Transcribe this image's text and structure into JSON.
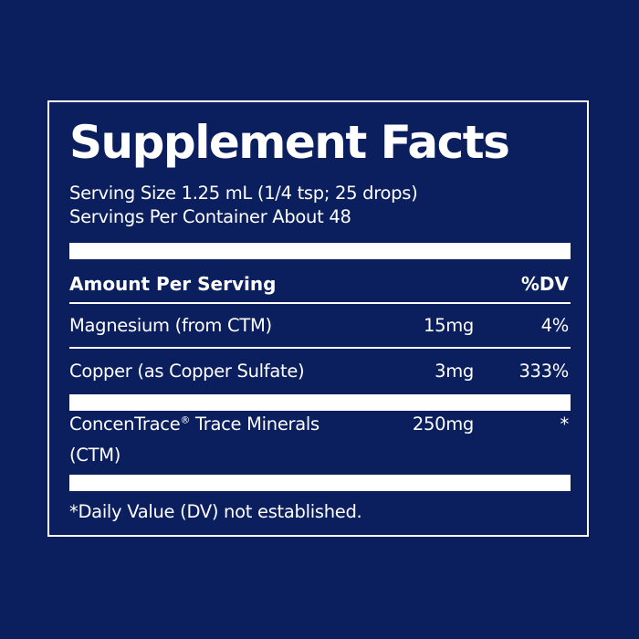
{
  "title": "Supplement Facts",
  "serving_size": "Serving Size 1.25 mL (1/4 tsp; 25 drops)",
  "servings_per_container": "Servings Per Container About 48",
  "header": {
    "amount_label": "Amount Per Serving",
    "dv_label": "%DV"
  },
  "rows": [
    {
      "name": "Magnesium (from CTM)",
      "amount": "15mg",
      "dv": "4%"
    },
    {
      "name": "Copper (as Copper Sulfate)",
      "amount": "3mg",
      "dv": "333%"
    },
    {
      "name_part1": "ConcenTrace",
      "registered": "®",
      "name_part2": " Trace Minerals",
      "name_line2": "(CTM)",
      "amount": "250mg",
      "dv": "*"
    }
  ],
  "footnote": "*Daily Value (DV) not established.",
  "colors": {
    "background": "#0b1f5e",
    "foreground": "#ffffff"
  }
}
